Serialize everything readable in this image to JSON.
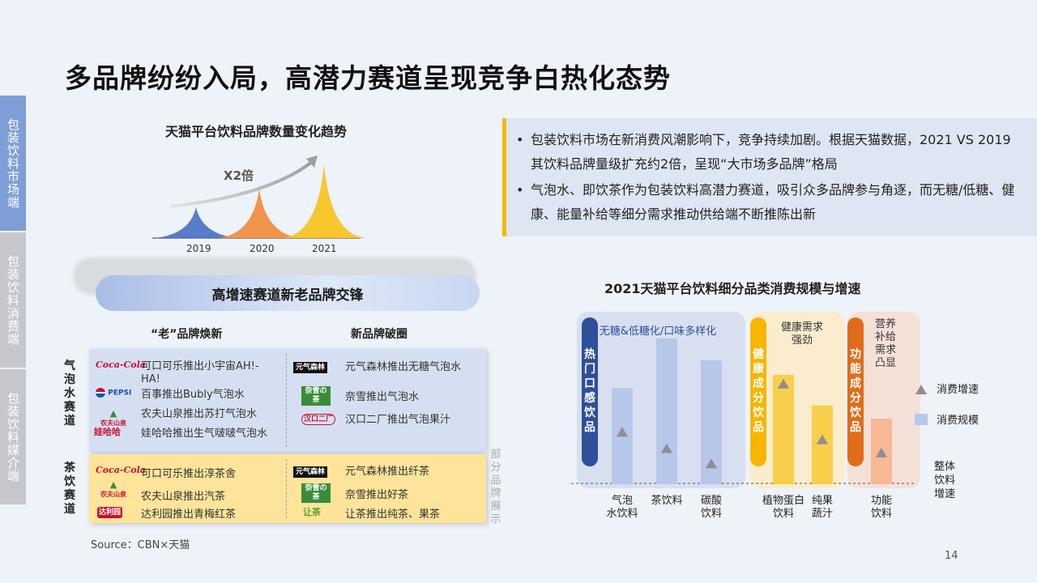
{
  "title": "多品牌纷纷入局，高潜力赛道呈现竞争白热化态势",
  "side_tabs": [
    "包装饮料市场端",
    "包装饮料消费端",
    "包装饮料媒介端"
  ],
  "trend": {
    "title": "天猫平台饮料品牌数量变化趋势",
    "annotation": "X2倍",
    "years": [
      "2019",
      "2020",
      "2021"
    ],
    "relative_values": [
      1,
      1.6,
      2.4
    ],
    "colors": [
      "#4a72c4",
      "#ef8c3c",
      "#f7c31c"
    ]
  },
  "bullets": [
    "包装饮料市场在新消费风潮影响下，竞争持续加剧。根据天猫数据，2021 VS 2019 其饮料品牌量级扩充约2倍，呈现“大市场多品牌”格局",
    "气泡水、即饮茶作为包装饮料高潜力赛道，吸引众多品牌参与角逐，而无糖/低糖、健康、能量补给等细分需求推动供给端不断推陈出新"
  ],
  "rivalry": {
    "banner": "高增速赛道新老品牌交锋",
    "old_header": "“老”品牌焕新",
    "new_header": "新品牌破圈",
    "rows": [
      {
        "label": "气泡水赛道",
        "old": [
          {
            "logo": "Coca-Cola",
            "text": "可口可乐推出小宇宙AH!-HA!"
          },
          {
            "logo": "PEPSI",
            "text": "百事推出Bubly气泡水"
          },
          {
            "logo": "农夫山泉",
            "text": "农夫山泉推出苏打气泡水"
          },
          {
            "logo": "娃哈哈",
            "text": "娃哈哈推出生气啵啵气泡水"
          }
        ],
        "new": [
          {
            "logo": "元气森林",
            "text": "元气森林推出无糖气泡水"
          },
          {
            "logo": "奈雪の茶",
            "text": "奈雪推出气泡水"
          },
          {
            "logo": "汉口二厂",
            "text": "汉口二厂推出气泡果汁"
          }
        ]
      },
      {
        "label": "茶饮赛道",
        "old": [
          {
            "logo": "Coca-Cola",
            "text": "可口可乐推出淳茶舍"
          },
          {
            "logo": "农夫山泉",
            "text": "农夫山泉推出汽茶"
          },
          {
            "logo": "达利园",
            "text": "达利园推出青梅红茶"
          }
        ],
        "new": [
          {
            "logo": "元气森林",
            "text": "元气森林推出纤茶"
          },
          {
            "logo": "奈雪の茶",
            "text": "奈雪推出好茶"
          },
          {
            "logo": "让茶",
            "text": "让茶推出纯茶、果茶"
          }
        ]
      }
    ],
    "note": "部分品牌展示"
  },
  "source": "Source：CBN×天猫",
  "category_chart": {
    "title": "2021天猫平台饮料细分品类消费规模与增速",
    "groups": [
      {
        "label": "热门口感饮品",
        "note": "无糖&低糖化/口味多样化",
        "color": "#2f4e9b",
        "bg": "#d3dcee",
        "categories": [
          0,
          1,
          2
        ]
      },
      {
        "label": "健康成分饮品",
        "note": "健康需求强劲",
        "color": "#f7b500",
        "bg": "#fbebc4",
        "categories": [
          3,
          4
        ]
      },
      {
        "label": "功能成分饮品",
        "note": "营养补给需求凸显",
        "color": "#e06c1a",
        "bg": "#f6ddd2",
        "categories": [
          5
        ]
      }
    ],
    "categories": [
      "气泡水饮料",
      "茶饮料",
      "碳酸饮料",
      "植物蛋白饮料",
      "纯果蔬汁",
      "功能饮料"
    ],
    "consumption_scale": [
      0.66,
      1.0,
      0.85,
      0.75,
      0.54,
      0.45
    ],
    "consumption_growth": [
      0.48,
      0.33,
      0.19,
      0.92,
      0.41,
      0.29
    ],
    "overall_growth": 0.2,
    "legend": {
      "growth": "消费增速",
      "scale": "消费规模",
      "overall": "整体饮料增速"
    }
  },
  "page_number": "14"
}
